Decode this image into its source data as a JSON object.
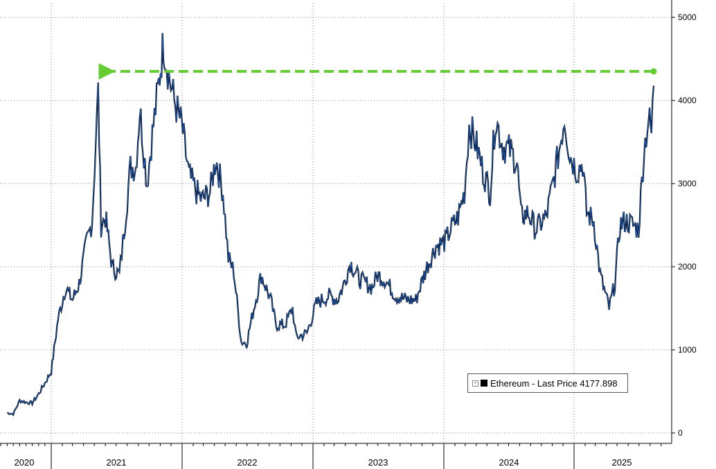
{
  "chart_data": {
    "type": "line",
    "title": "",
    "xlabel": "",
    "ylabel": "",
    "ylim": [
      0,
      5000
    ],
    "yticks": [
      0,
      1000,
      2000,
      3000,
      4000,
      5000
    ],
    "grid": true,
    "legend_placement": "bottom-right",
    "x_tick_labels": [
      "2020",
      "2021",
      "2022",
      "2023",
      "2024",
      "2025"
    ],
    "series": [
      {
        "name": "Ethereum - Last Price 4177.898",
        "color": "#1f5fbf",
        "x": [
          "2020-06-01",
          "2020-07-01",
          "2020-08-01",
          "2020-09-01",
          "2020-10-01",
          "2020-11-01",
          "2020-12-01",
          "2021-01-01",
          "2021-01-20",
          "2021-02-10",
          "2021-03-01",
          "2021-03-20",
          "2021-04-10",
          "2021-04-25",
          "2021-05-05",
          "2021-05-12",
          "2021-05-20",
          "2021-06-01",
          "2021-06-20",
          "2021-07-10",
          "2021-07-20",
          "2021-08-10",
          "2021-08-25",
          "2021-09-05",
          "2021-09-25",
          "2021-10-10",
          "2021-10-25",
          "2021-11-10",
          "2021-11-25",
          "2021-12-10",
          "2021-12-31",
          "2022-01-20",
          "2022-02-10",
          "2022-02-25",
          "2022-03-20",
          "2022-04-05",
          "2022-04-25",
          "2022-05-10",
          "2022-05-25",
          "2022-06-15",
          "2022-06-30",
          "2022-07-20",
          "2022-08-10",
          "2022-09-05",
          "2022-09-20",
          "2022-10-15",
          "2022-11-05",
          "2022-11-15",
          "2022-12-15",
          "2023-01-10",
          "2023-01-25",
          "2023-02-15",
          "2023-03-10",
          "2023-03-25",
          "2023-04-15",
          "2023-05-10",
          "2023-06-15",
          "2023-06-30",
          "2023-07-20",
          "2023-08-20",
          "2023-09-20",
          "2023-10-15",
          "2023-10-30",
          "2023-11-15",
          "2023-12-10",
          "2024-01-05",
          "2024-01-20",
          "2024-02-10",
          "2024-02-28",
          "2024-03-12",
          "2024-03-30",
          "2024-04-20",
          "2024-05-10",
          "2024-05-25",
          "2024-06-15",
          "2024-07-05",
          "2024-07-25",
          "2024-08-05",
          "2024-08-25",
          "2024-09-15",
          "2024-10-15",
          "2024-11-05",
          "2024-11-20",
          "2024-12-05",
          "2024-12-20",
          "2025-01-10",
          "2025-01-25",
          "2025-02-05",
          "2025-02-25",
          "2025-03-15",
          "2025-04-09",
          "2025-04-25",
          "2025-05-09",
          "2025-05-25",
          "2025-06-15",
          "2025-06-30",
          "2025-07-15",
          "2025-07-28",
          "2025-08-05",
          "2025-08-11"
        ],
        "y": [
          240,
          230,
          390,
          370,
          360,
          470,
          600,
          740,
          1370,
          1750,
          1600,
          1800,
          2300,
          2550,
          3500,
          4100,
          2500,
          2600,
          2000,
          1900,
          2300,
          3200,
          3200,
          3900,
          3000,
          3600,
          4100,
          4700,
          4300,
          4000,
          3700,
          3100,
          2900,
          2800,
          2900,
          3300,
          2900,
          2100,
          1950,
          1100,
          1080,
          1500,
          1900,
          1600,
          1300,
          1300,
          1500,
          1150,
          1200,
          1550,
          1600,
          1650,
          1600,
          1750,
          2050,
          1850,
          1750,
          1900,
          1850,
          1650,
          1600,
          1600,
          1800,
          2000,
          2250,
          2300,
          2450,
          2600,
          2900,
          3700,
          3500,
          3150,
          2900,
          3800,
          3450,
          3400,
          3250,
          2600,
          2650,
          2450,
          2600,
          3050,
          3400,
          3800,
          3350,
          3150,
          3250,
          2650,
          2550,
          1900,
          1500,
          1800,
          2500,
          2550,
          2500,
          2450,
          3400,
          3800,
          3600,
          4177.898
        ]
      }
    ],
    "annotations": [
      {
        "type": "dashed-arrow",
        "color": "#66cc33",
        "from_x": "2025-08-11",
        "to_x": "2021-06-05",
        "y": 4350
      },
      {
        "type": "price-tag",
        "text": "4177.898"
      }
    ]
  },
  "legend": {
    "label": "Ethereum - Last Price 4177.898"
  },
  "price_tag": "4177.898"
}
